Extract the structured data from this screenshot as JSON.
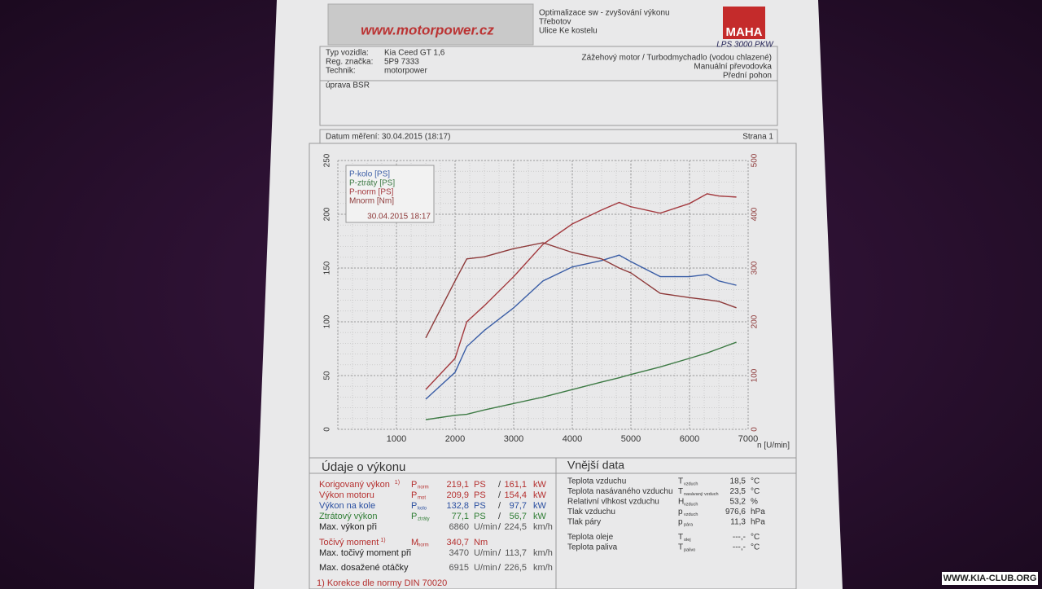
{
  "header": {
    "logo": "www.motorpower.cz",
    "company": [
      "Optimalizace sw - zvyšování výkonu",
      "Třebotov",
      "Ulice Ke kostelu"
    ],
    "brand": "MAHA",
    "model": "LPS 3000 PKW"
  },
  "vehicle": {
    "rows": [
      [
        "Typ vozidla:",
        "Kia Ceed GT 1,6"
      ],
      [
        "Reg. značka:",
        "5P9 7333"
      ],
      [
        "Technik:",
        "motorpower"
      ]
    ],
    "details": [
      "Zážehový motor / Turbodmychadlo (vodou chlazené)",
      "Manuální převodovka",
      "Přední pohon"
    ],
    "note": "úprava BSR"
  },
  "measurement": {
    "date": "Datum měření: 30.04.2015 (18:17)",
    "page": "Strana 1"
  },
  "chart_data": {
    "type": "line",
    "x_label": "n [U/min]",
    "legend_date": "30.04.2015 18:17",
    "legend": "top-left",
    "grid": true,
    "x": [
      1500,
      2000,
      2200,
      2500,
      3000,
      3500,
      4000,
      4500,
      4800,
      5000,
      5500,
      6000,
      6300,
      6500,
      6800
    ],
    "xlim": [
      0,
      7000
    ],
    "xticks": [
      0,
      1000,
      2000,
      3000,
      4000,
      5000,
      6000,
      7000
    ],
    "ylim": [
      0,
      250
    ],
    "yticks": [
      0,
      50,
      100,
      150,
      200,
      250
    ],
    "y2lim": [
      0,
      500
    ],
    "y2ticks": [
      0,
      100,
      200,
      300,
      400,
      500
    ],
    "series": [
      {
        "name": "P-kolo [PS]",
        "color": "#3b5ea6",
        "values": [
          28,
          53,
          77,
          92,
          113,
          138,
          151,
          157,
          162,
          156,
          142,
          142,
          144,
          138,
          134
        ]
      },
      {
        "name": "P-ztráty [PS]",
        "color": "#3d7a44",
        "values": [
          9,
          13,
          14,
          18,
          24,
          30,
          37,
          44,
          48,
          51,
          58,
          66,
          71,
          75,
          81
        ]
      },
      {
        "name": "P-norm [PS]",
        "color": "#a3393e",
        "values": [
          37,
          66,
          100,
          115,
          142,
          172,
          191,
          204,
          211,
          207,
          201,
          210,
          219,
          217,
          216
        ]
      },
      {
        "name": "Mnorm [Nm]",
        "color": "#8e3a3a",
        "axis": "y2",
        "values": [
          170,
          276,
          317,
          321,
          336,
          347,
          329,
          317,
          300,
          291,
          253,
          245,
          241,
          238,
          226
        ]
      }
    ]
  },
  "performance": {
    "title": "Údaje o výkonu",
    "rows": [
      {
        "label": "Korigovaný výkon",
        "note": "1)",
        "sym": "P",
        "sub": "norm",
        "v1": "219,1",
        "u1": "PS",
        "sep": "/",
        "v2": "161,1",
        "u2": "kW"
      },
      {
        "label": "Výkon motoru",
        "sym": "P",
        "sub": "mot",
        "v1": "209,9",
        "u1": "PS",
        "sep": "/",
        "v2": "154,4",
        "u2": "kW"
      },
      {
        "label": "Výkon na kole",
        "sym": "P",
        "sub": "kolo",
        "v1": "132,8",
        "u1": "PS",
        "sep": "/",
        "v2": "97,7",
        "u2": "kW"
      },
      {
        "label": "Ztrátový výkon",
        "sym": "P",
        "sub": "ztráty",
        "v1": "77,1",
        "u1": "PS",
        "sep": "/",
        "v2": "56,7",
        "u2": "kW"
      },
      {
        "label": "Max. výkon při",
        "v1": "6860",
        "u1": "U/min",
        "sep": "/",
        "v2": "224,5",
        "u2": "km/h"
      },
      {
        "label": "Točivý moment",
        "note": "1)",
        "sym": "M",
        "sub": "norm",
        "v1": "340,7",
        "u1": "Nm"
      },
      {
        "label": "Max. točivý moment při",
        "v1": "3470",
        "u1": "U/min",
        "sep": "/",
        "v2": "113,7",
        "u2": "km/h"
      },
      {
        "label": "Max. dosažené otáčky",
        "v1": "6915",
        "u1": "U/min",
        "sep": "/",
        "v2": "226,5",
        "u2": "km/h"
      }
    ],
    "footnote": "1) Korekce dle normy DIN 70020"
  },
  "ambient": {
    "title": "Vnější data",
    "rows": [
      {
        "label": "Teplota vzduchu",
        "sym": "T",
        "sub": "vzduch",
        "v": "18,5",
        "u": "°C"
      },
      {
        "label": "Teplota nasávaného vzduchu",
        "sym": "T",
        "sub": "nasávaný vzduch",
        "v": "23,5",
        "u": "°C"
      },
      {
        "label": "Relativní vlhkost vzduchu",
        "sym": "H",
        "sub": "vzduch",
        "v": "53,2",
        "u": "%"
      },
      {
        "label": "Tlak vzduchu",
        "sym": "p",
        "sub": "vzduch",
        "v": "976,6",
        "u": "hPa"
      },
      {
        "label": "Tlak páry",
        "sym": "p",
        "sub": "pára",
        "v": "11,3",
        "u": "hPa"
      },
      {
        "label": "Teplota oleje",
        "sym": "T",
        "sub": "olej",
        "v": "---,-",
        "u": "°C"
      },
      {
        "label": "Teplota paliva",
        "sym": "T",
        "sub": "palivo",
        "v": "---,-",
        "u": "°C"
      }
    ]
  },
  "watermark": "WWW.KIA-CLUB.ORG"
}
